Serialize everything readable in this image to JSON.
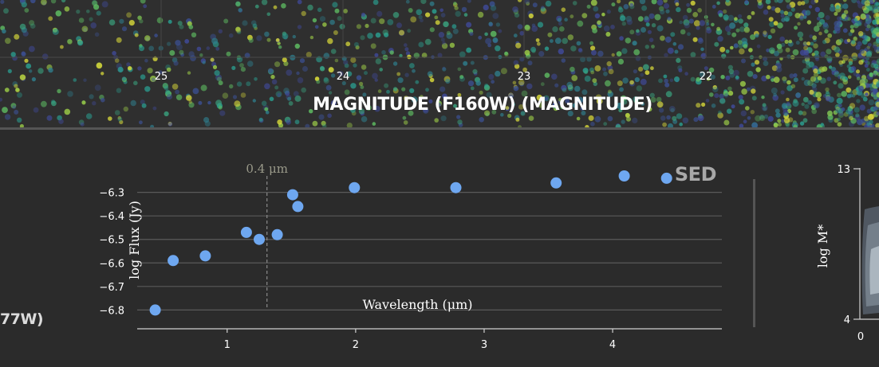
{
  "top_panel": {
    "x_axis_title": "MAGNITUDE (F160W) (MAGNITUDE)",
    "x_ticks": [
      "25",
      "24",
      "23",
      "22"
    ],
    "point_colors": [
      "#3b4f8f",
      "#2f7f8e",
      "#3aa37f",
      "#5fbf63",
      "#9ecf48",
      "#d8d93a",
      "#404a9a",
      "#2a9d8f"
    ]
  },
  "left_clip": {
    "text": "77W)"
  },
  "sed_panel": {
    "corner_label": "SED",
    "annotation": "0.4 μm",
    "point_color": "#6ea7f0"
  },
  "right_panel": {
    "y_label": "log M*",
    "y_ticks": [
      "13",
      "4"
    ],
    "x_ticks": [
      "0"
    ]
  },
  "chart_data": {
    "type": "scatter",
    "xlabel": "Wavelength (μm)",
    "ylabel": "log Flux (Jy)",
    "xlim": [
      0.3,
      4.85
    ],
    "ylim": [
      -6.88,
      -6.22
    ],
    "x_ticks": [
      1,
      2,
      3,
      4
    ],
    "y_ticks": [
      -6.3,
      -6.4,
      -6.5,
      -6.6,
      -6.7,
      -6.8
    ],
    "y_tick_labels": [
      "−6.3",
      "−6.4",
      "−6.5",
      "−6.6",
      "−6.7",
      "−6.8"
    ],
    "grid": true,
    "reference_line_x": 1.31,
    "series": [
      {
        "x": [
          0.44,
          0.58,
          0.83,
          1.15,
          1.25,
          1.39,
          1.51,
          1.55,
          1.99,
          2.78,
          3.56,
          4.09,
          4.42
        ],
        "y": [
          -6.8,
          -6.59,
          -6.57,
          -6.47,
          -6.5,
          -6.48,
          -6.31,
          -6.36,
          -6.28,
          -6.28,
          -6.26,
          -6.23,
          -6.24
        ]
      }
    ]
  }
}
